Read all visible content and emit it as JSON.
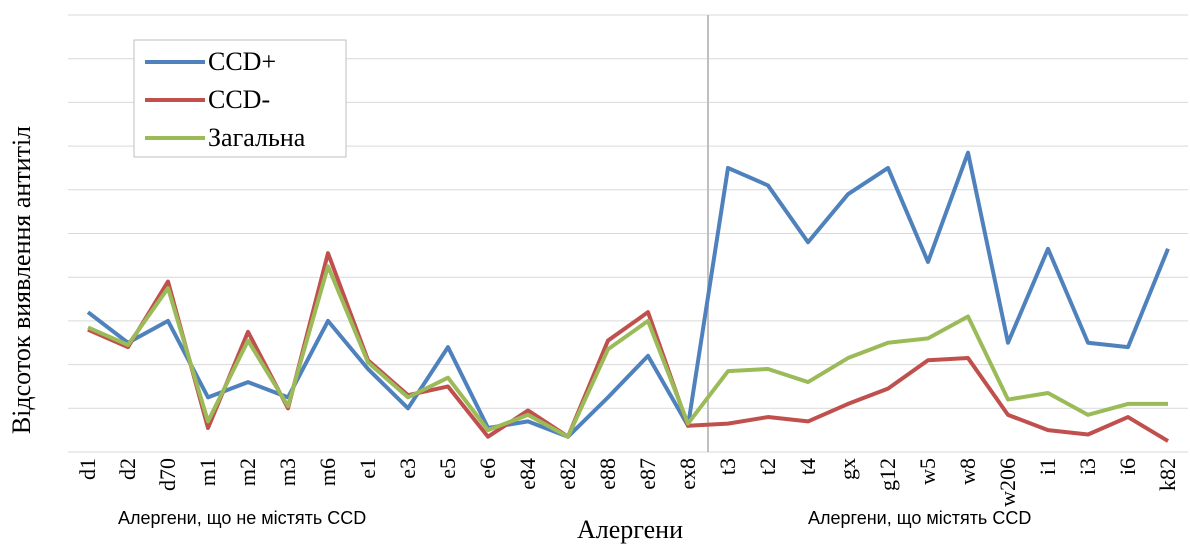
{
  "chart_data": {
    "type": "line",
    "x_label": "Алергени",
    "y_label": "Відсоток виявлення антитіл",
    "annotations": [
      "Алергени, що не містять CCD",
      "Алергени, що містять CCD"
    ],
    "categories": [
      "d1",
      "d2",
      "d70",
      "m1",
      "m2",
      "m3",
      "m6",
      "e1",
      "e3",
      "e5",
      "e6",
      "e84",
      "e82",
      "e88",
      "e87",
      "ex8",
      "t3",
      "t2",
      "t4",
      "gx",
      "g12",
      "w5",
      "w8",
      "w206",
      "i1",
      "i3",
      "i6",
      "k82"
    ],
    "series": [
      {
        "name": "CCD+",
        "color": "#4f81bd",
        "values": [
          3.2,
          2.5,
          3.0,
          1.25,
          1.6,
          1.25,
          3.0,
          1.9,
          1.0,
          2.4,
          0.55,
          0.7,
          0.35,
          1.25,
          2.2,
          0.6,
          6.5,
          6.1,
          4.8,
          5.9,
          6.5,
          4.35,
          6.85,
          2.5,
          4.65,
          2.5,
          2.4,
          4.65
        ]
      },
      {
        "name": "CCD-",
        "color": "#c0504d",
        "values": [
          2.8,
          2.4,
          3.9,
          0.55,
          2.75,
          1.0,
          4.55,
          2.1,
          1.3,
          1.5,
          0.35,
          0.95,
          0.35,
          2.55,
          3.2,
          0.6,
          0.65,
          0.8,
          0.7,
          1.1,
          1.45,
          2.1,
          2.15,
          0.85,
          0.5,
          0.4,
          0.8,
          0.25
        ]
      },
      {
        "name": "Загальна",
        "color": "#9bbb59",
        "values": [
          2.85,
          2.45,
          3.75,
          0.7,
          2.55,
          1.05,
          4.25,
          2.05,
          1.25,
          1.7,
          0.5,
          0.85,
          0.35,
          2.35,
          3.0,
          0.65,
          1.85,
          1.9,
          1.6,
          2.15,
          2.5,
          2.6,
          3.1,
          1.2,
          1.35,
          0.85,
          1.1,
          1.1
        ]
      }
    ],
    "ylim": [
      0,
      10
    ],
    "yticks": [
      0,
      1,
      2,
      3,
      4,
      5,
      6,
      7,
      8,
      9,
      10
    ],
    "grid": true,
    "legend": "top-left"
  }
}
